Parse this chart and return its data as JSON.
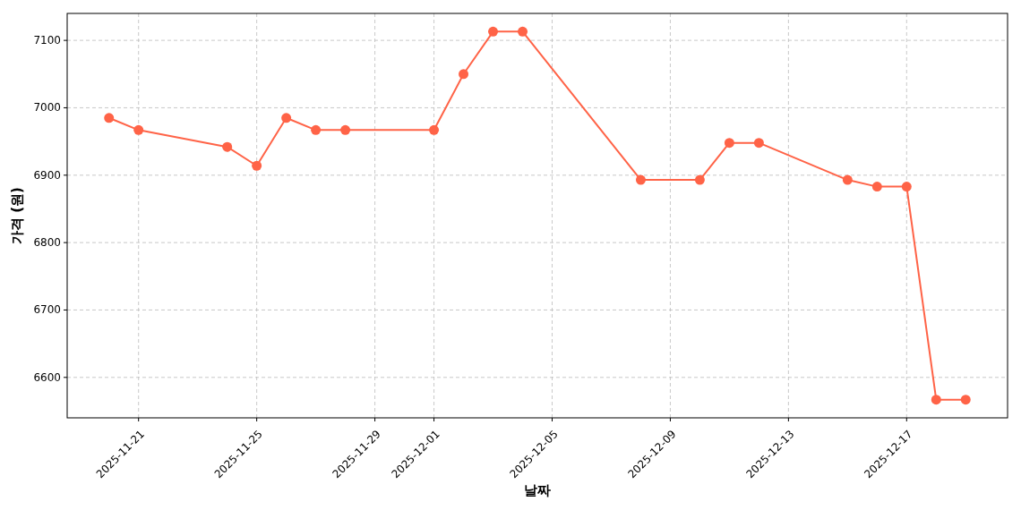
{
  "chart_data": {
    "type": "line",
    "xlabel": "날짜",
    "ylabel": "가격 (원)",
    "x": [
      "2025-11-20",
      "2025-11-21",
      "2025-11-24",
      "2025-11-25",
      "2025-11-26",
      "2025-11-27",
      "2025-11-28",
      "2025-12-01",
      "2025-12-02",
      "2025-12-03",
      "2025-12-04",
      "2025-12-08",
      "2025-12-10",
      "2025-12-11",
      "2025-12-12",
      "2025-12-15",
      "2025-12-16",
      "2025-12-17",
      "2025-12-18",
      "2025-12-19"
    ],
    "series": [
      {
        "color": "#ff6347",
        "values": [
          6985,
          6967,
          6942,
          6914,
          6985,
          6967,
          6967,
          6967,
          7050,
          7113,
          7113,
          6893,
          6893,
          6948,
          6948,
          6893,
          6883,
          6883,
          6567,
          6567
        ]
      }
    ],
    "xlim": [
      "2025-11-18T14:00",
      "2025-12-20T10:00"
    ],
    "xticks": [
      "2025-11-21",
      "2025-11-25",
      "2025-11-29",
      "2025-12-01",
      "2025-12-05",
      "2025-12-09",
      "2025-12-13",
      "2025-12-17"
    ],
    "ylim": [
      6540,
      7140
    ],
    "yticks": [
      6600,
      6700,
      6800,
      6900,
      7000,
      7100
    ],
    "grid": true,
    "marker": "circle",
    "line_style": "solid"
  }
}
